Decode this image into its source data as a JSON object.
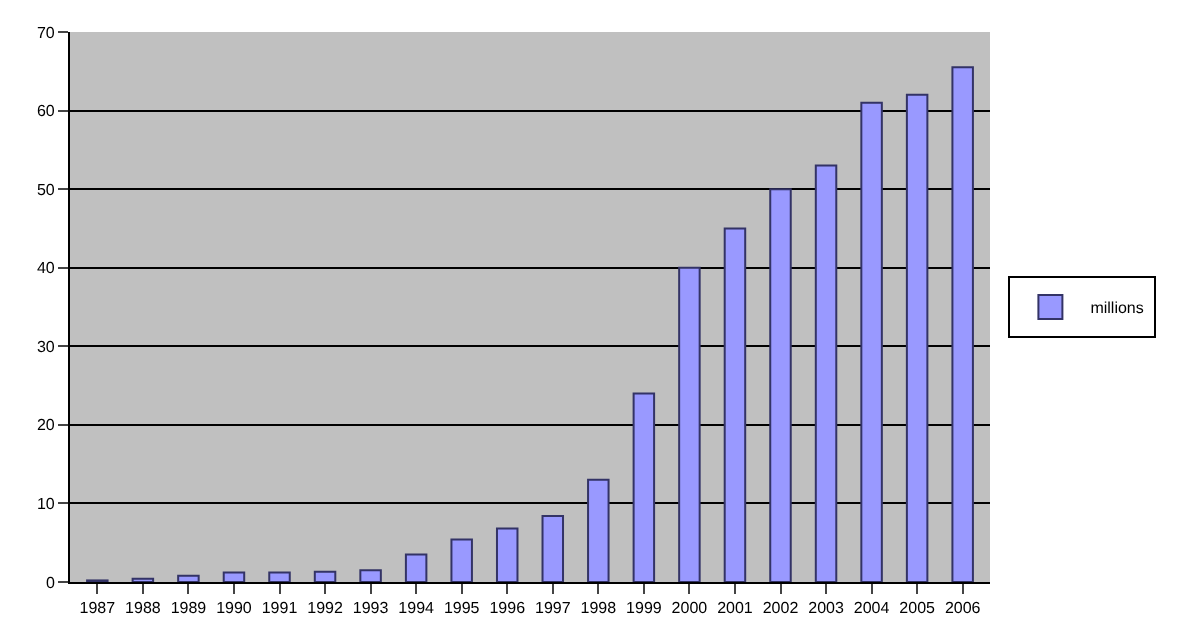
{
  "chart_data": {
    "type": "bar",
    "categories": [
      "1987",
      "1988",
      "1989",
      "1990",
      "1991",
      "1992",
      "1993",
      "1994",
      "1995",
      "1996",
      "1997",
      "1998",
      "1999",
      "2000",
      "2001",
      "2002",
      "2003",
      "2004",
      "2005",
      "2006"
    ],
    "series": [
      {
        "name": "millions",
        "color": "#9999ff",
        "values": [
          0.2,
          0.4,
          0.8,
          1.2,
          1.2,
          1.3,
          1.5,
          3.5,
          5.4,
          6.8,
          8.4,
          13,
          24,
          40,
          45,
          50,
          53,
          61,
          62,
          65.5
        ]
      }
    ],
    "ylim": [
      0,
      70
    ],
    "yticks": [
      0,
      10,
      20,
      30,
      40,
      50,
      60,
      70
    ],
    "grid": "y",
    "legend": "right"
  }
}
